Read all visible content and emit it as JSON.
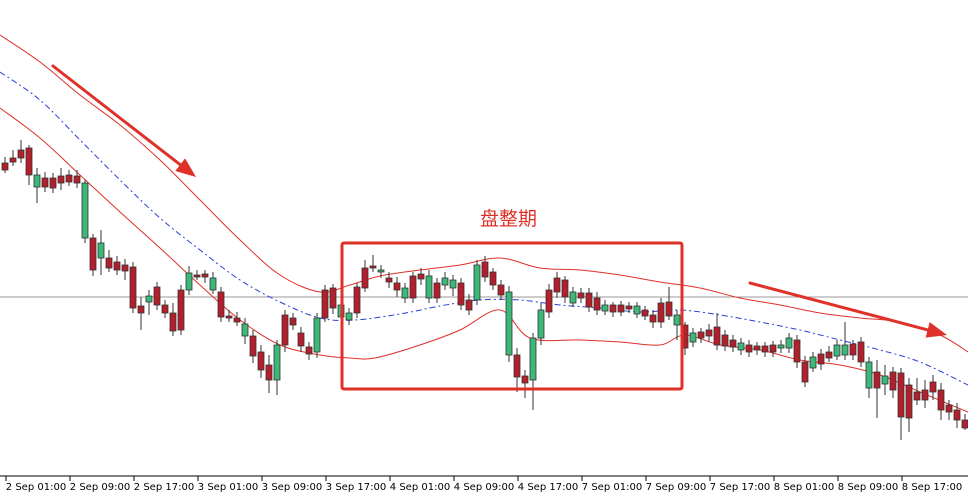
{
  "chart_data": {
    "type": "candlestick",
    "title": "",
    "xlabel": "",
    "ylabel": "",
    "x_tick_labels": [
      "2 Sep 01:00",
      "2 Sep 09:00",
      "2 Sep 17:00",
      "3 Sep 01:00",
      "3 Sep 09:00",
      "3 Sep 17:00",
      "4 Sep 01:00",
      "4 Sep 09:00",
      "4 Sep 17:00",
      "7 Sep 01:00",
      "7 Sep 09:00",
      "7 Sep 17:00",
      "8 Sep 01:00",
      "8 Sep 09:00",
      "8 Sep 17:00"
    ],
    "annotation": {
      "text": "盘整期"
    },
    "series": [
      {
        "type": "candlestick",
        "bullish_color": "#3cb878",
        "bearish_color": "#b3202c"
      },
      {
        "type": "band",
        "color": "#e0302a"
      },
      {
        "type": "moving-average",
        "style": "dash-dot",
        "color": "#2a3fd6"
      }
    ],
    "colors": {
      "box": "#e0302a",
      "arrows": "#e0302a",
      "reference_line": "#999999"
    }
  }
}
